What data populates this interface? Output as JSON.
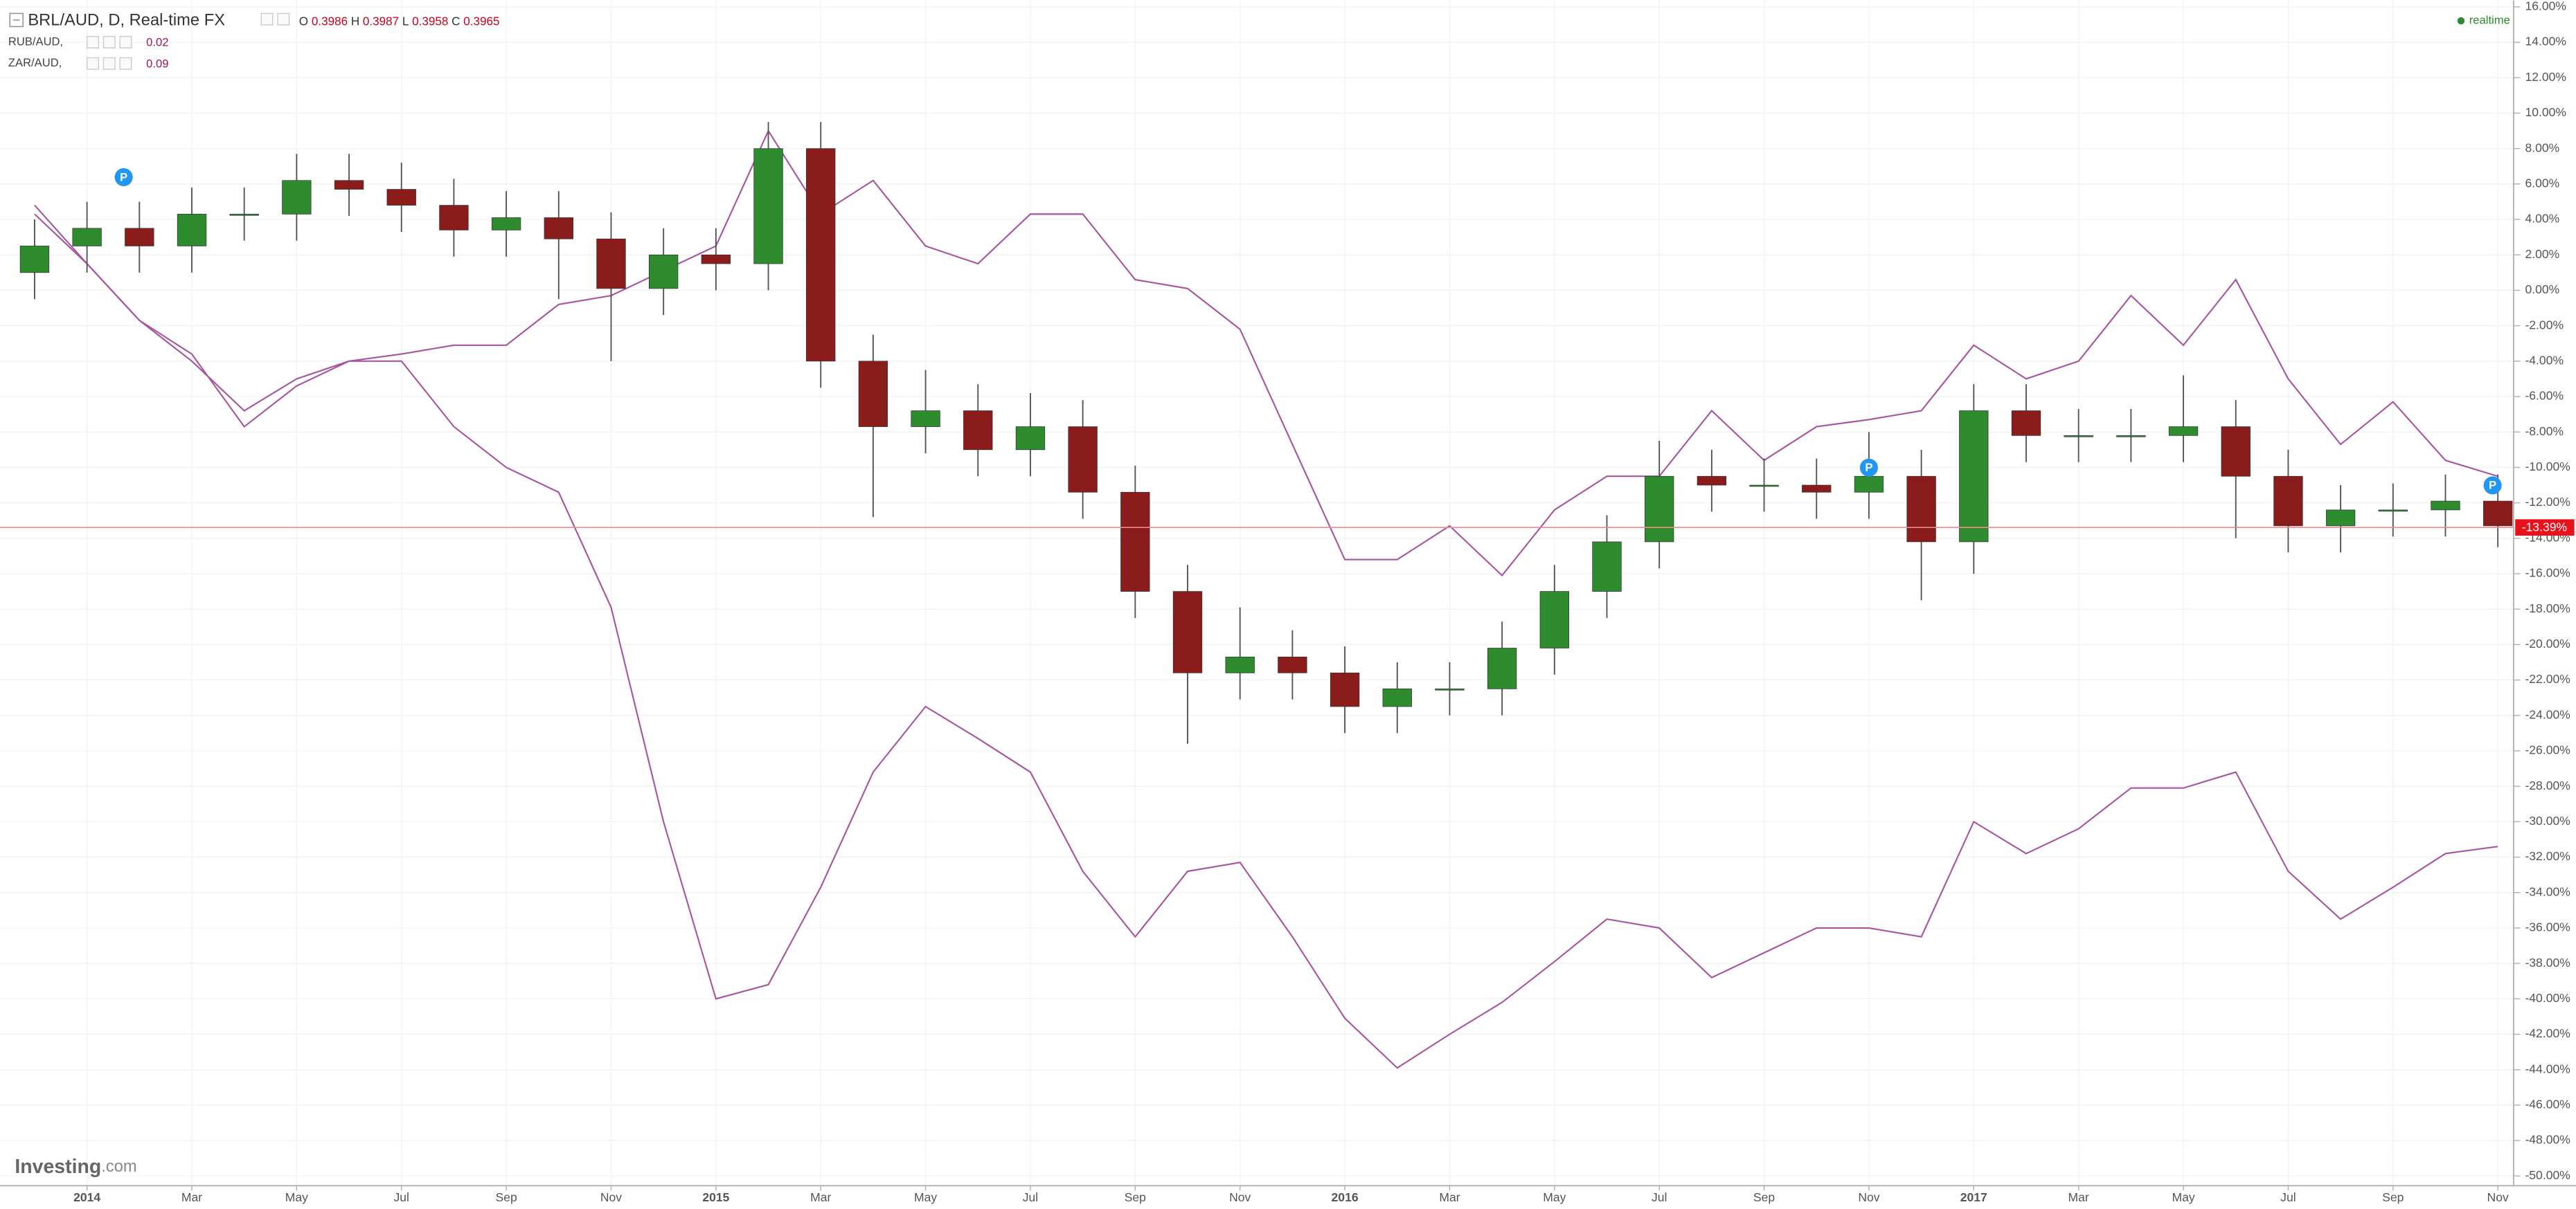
{
  "chart_data": {
    "type": "candlestick",
    "title": "BRL/AUD, D, Real-time FX",
    "ohlc": [
      {
        "key": "O",
        "value": "0.3986"
      },
      {
        "key": "H",
        "value": "0.3987"
      },
      {
        "key": "L",
        "value": "0.3958"
      },
      {
        "key": "C",
        "value": "0.3965"
      }
    ],
    "status": "realtime",
    "watermark": {
      "brand": "Investing",
      "suffix": ".com"
    },
    "x": [
      -1,
      0,
      1,
      2,
      3,
      4,
      5,
      6,
      7,
      8,
      9,
      10,
      11,
      12,
      13,
      14,
      15,
      16,
      17,
      18,
      19,
      20,
      21,
      22,
      23,
      24,
      25,
      26,
      27,
      28,
      29,
      30,
      31,
      32,
      33,
      34,
      35,
      36,
      37,
      38,
      39,
      40,
      41,
      42,
      43,
      44,
      45,
      46
    ],
    "candles": {
      "up_color": "#2e8b2e",
      "down_color": "#8b1c1c",
      "wick_color": "#555555",
      "open": [
        1,
        2.5,
        3.5,
        2.5,
        4.3,
        4.3,
        6.2,
        5.7,
        4.8,
        3.4,
        4.1,
        2.9,
        0.1,
        2,
        1.5,
        8,
        -4,
        -7.7,
        -6.8,
        -9,
        -7.7,
        -11.4,
        -17,
        -21.6,
        -20.7,
        -21.6,
        -23.5,
        -22.5,
        -22.5,
        -20.2,
        -17,
        -14.2,
        -10.5,
        -11,
        -11,
        -11.4,
        -10.5,
        -14.2,
        -6.8,
        -8.2,
        -8.2,
        -8.2,
        -7.7,
        -10.5,
        -13.3,
        -12.4,
        -12.4,
        -11.9
      ],
      "high": [
        4,
        5,
        5,
        5.8,
        5.8,
        7.7,
        7.7,
        7.2,
        6.3,
        5.6,
        5.6,
        4.4,
        3.5,
        3.5,
        9.5,
        9.5,
        -2.5,
        -4.5,
        -5.3,
        -5.8,
        -6.2,
        -9.9,
        -15.5,
        -17.9,
        -19.2,
        -20.1,
        -21,
        -21,
        -18.7,
        -15.5,
        -12.7,
        -8.5,
        -9,
        -9.5,
        -9.5,
        -8,
        -9,
        -5.3,
        -5.3,
        -6.7,
        -6.7,
        -4.8,
        -6.2,
        -9,
        -11,
        -10.9,
        -10.4,
        -10.4
      ],
      "low": [
        -0.5,
        1,
        1,
        1,
        2.8,
        2.8,
        4.2,
        3.3,
        1.9,
        1.9,
        -0.5,
        -4,
        -1.4,
        0,
        0,
        -5.5,
        -12.8,
        -9.2,
        -10.5,
        -10.5,
        -12.9,
        -18.5,
        -25.6,
        -23.1,
        -23.1,
        -25,
        -25,
        -24,
        -24,
        -21.7,
        -18.5,
        -15.7,
        -12.5,
        -12.5,
        -12.9,
        -12.9,
        -17.5,
        -16,
        -9.7,
        -9.7,
        -9.7,
        -9.7,
        -14,
        -14.8,
        -14.8,
        -13.9,
        -13.9,
        -14.5
      ],
      "close": [
        2.5,
        3.5,
        2.5,
        4.3,
        4.3,
        6.2,
        5.7,
        4.8,
        3.4,
        4.1,
        2.9,
        0.1,
        2,
        1.5,
        8,
        -4,
        -7.7,
        -6.8,
        -9,
        -7.7,
        -11.4,
        -17,
        -21.6,
        -20.7,
        -21.6,
        -23.5,
        -22.5,
        -22.5,
        -20.2,
        -17,
        -14.2,
        -10.5,
        -11,
        -11,
        -11.4,
        -10.5,
        -14.2,
        -6.8,
        -8.2,
        -8.2,
        -8.2,
        -7.7,
        -10.5,
        -13.3,
        -12.4,
        -12.4,
        -11.9,
        -13.3
      ]
    },
    "series": [
      {
        "name": "RUB/AUD,",
        "legend_value": "0.02",
        "color": "#a8559f",
        "values": [
          4.8,
          1.5,
          -1.7,
          -4,
          -6.8,
          -5,
          -4,
          -4,
          -7.7,
          -10,
          -11.4,
          -17.9,
          -30,
          -40,
          -39.2,
          -33.7,
          -27.2,
          -23.5,
          -25.3,
          -27.2,
          -32.8,
          -36.5,
          -32.8,
          -32.3,
          -36.5,
          -41.1,
          -43.9,
          -42,
          -40.2,
          -37.9,
          -35.5,
          -36,
          -38.8,
          -37.4,
          -36,
          -36,
          -36.5,
          -30,
          -31.8,
          -30.4,
          -28.1,
          -28.1,
          -27.2,
          -32.8,
          -35.5,
          -33.7,
          -31.8,
          -31.4
        ]
      },
      {
        "name": "ZAR/AUD,",
        "legend_value": "0.09",
        "color": "#a8559f",
        "values": [
          4.3,
          1.5,
          -1.7,
          -3.6,
          -7.7,
          -5.4,
          -4,
          -3.6,
          -3.1,
          -3.1,
          -0.8,
          -0.3,
          1.1,
          2.5,
          9,
          4.3,
          6.2,
          2.5,
          1.5,
          4.3,
          4.3,
          0.6,
          0.1,
          -2.2,
          -8.7,
          -15.2,
          -15.2,
          -13.3,
          -16.1,
          -12.4,
          -10.5,
          -10.5,
          -6.8,
          -9.6,
          -7.7,
          -7.3,
          -6.8,
          -3.1,
          -5,
          -4,
          -0.3,
          -3.1,
          0.6,
          -5,
          -8.7,
          -6.3,
          -9.6,
          -10.5
        ]
      }
    ],
    "last_value": {
      "value": -13.39,
      "label": "-13.39%"
    },
    "flags": [
      {
        "x": 0.7,
        "value": 6.2,
        "label": "P"
      },
      {
        "x": 34.0,
        "value": -10.2,
        "label": "P"
      },
      {
        "x": 45.9,
        "value": -11.2,
        "label": "P"
      }
    ],
    "xlim": [
      -1.66,
      46.3
    ],
    "ylim": [
      -50.55,
      16.37
    ],
    "xticks": [
      {
        "value": 0,
        "label": "2014"
      },
      {
        "value": 2,
        "label": "Mar"
      },
      {
        "value": 4,
        "label": "May"
      },
      {
        "value": 6,
        "label": "Jul"
      },
      {
        "value": 8,
        "label": "Sep"
      },
      {
        "value": 10,
        "label": "Nov"
      },
      {
        "value": 12,
        "label": "2015"
      },
      {
        "value": 14,
        "label": "Mar"
      },
      {
        "value": 16,
        "label": "May"
      },
      {
        "value": 18,
        "label": "Jul"
      },
      {
        "value": 20,
        "label": "Sep"
      },
      {
        "value": 22,
        "label": "Nov"
      },
      {
        "value": 24,
        "label": "2016"
      },
      {
        "value": 26,
        "label": "Mar"
      },
      {
        "value": 28,
        "label": "May"
      },
      {
        "value": 30,
        "label": "Jul"
      },
      {
        "value": 32,
        "label": "Sep"
      },
      {
        "value": 34,
        "label": "Nov"
      },
      {
        "value": 36,
        "label": "2017"
      },
      {
        "value": 38,
        "label": "Mar"
      },
      {
        "value": 40,
        "label": "May"
      },
      {
        "value": 42,
        "label": "Jul"
      },
      {
        "value": 44,
        "label": "Sep"
      },
      {
        "value": 46,
        "label": "Nov"
      }
    ],
    "yticks": [
      {
        "value": -50,
        "label": "-50.00%"
      },
      {
        "value": -48,
        "label": "-48.00%"
      },
      {
        "value": -46,
        "label": "-46.00%"
      },
      {
        "value": -44,
        "label": "-44.00%"
      },
      {
        "value": -42,
        "label": "-42.00%"
      },
      {
        "value": -40,
        "label": "-40.00%"
      },
      {
        "value": -38,
        "label": "-38.00%"
      },
      {
        "value": -36,
        "label": "-36.00%"
      },
      {
        "value": -34,
        "label": "-34.00%"
      },
      {
        "value": -32,
        "label": "-32.00%"
      },
      {
        "value": -30,
        "label": "-30.00%"
      },
      {
        "value": -28,
        "label": "-28.00%"
      },
      {
        "value": -26,
        "label": "-26.00%"
      },
      {
        "value": -24,
        "label": "-24.00%"
      },
      {
        "value": -22,
        "label": "-22.00%"
      },
      {
        "value": -20,
        "label": "-20.00%"
      },
      {
        "value": -18,
        "label": "-18.00%"
      },
      {
        "value": -16,
        "label": "-16.00%"
      },
      {
        "value": -14,
        "label": "-14.00%"
      },
      {
        "value": -12,
        "label": "-12.00%"
      },
      {
        "value": -10,
        "label": "-10.00%"
      },
      {
        "value": -8,
        "label": "-8.00%"
      },
      {
        "value": -6,
        "label": "-6.00%"
      },
      {
        "value": -4,
        "label": "-4.00%"
      },
      {
        "value": -2,
        "label": "-2.00%"
      },
      {
        "value": 0,
        "label": "0.00%"
      },
      {
        "value": 2,
        "label": "2.00%"
      },
      {
        "value": 4,
        "label": "4.00%"
      },
      {
        "value": 6,
        "label": "6.00%"
      },
      {
        "value": 8,
        "label": "8.00%"
      },
      {
        "value": 10,
        "label": "10.00%"
      },
      {
        "value": 12,
        "label": "12.00%"
      },
      {
        "value": 14,
        "label": "14.00%"
      },
      {
        "value": 16,
        "label": "16.00%"
      }
    ],
    "grid": true
  }
}
